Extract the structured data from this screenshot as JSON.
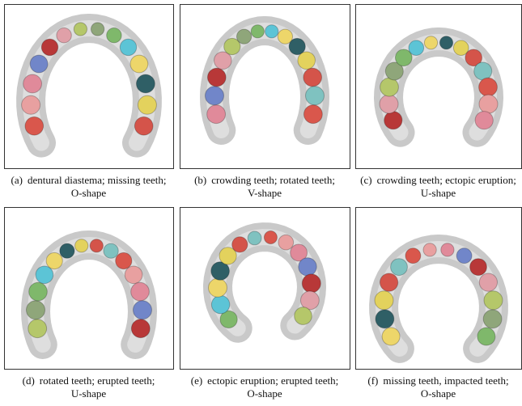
{
  "panels": [
    {
      "label": "(a)",
      "lines": [
        "dentural diastema; missing teeth;",
        "O-shape"
      ]
    },
    {
      "label": "(b)",
      "lines": [
        "crowding teeth; rotated teeth;",
        "V-shape"
      ]
    },
    {
      "label": "(c)",
      "lines": [
        "crowding teeth; ectopic eruption;",
        "U-shape"
      ]
    },
    {
      "label": "(d)",
      "lines": [
        "rotated teeth; erupted teeth;",
        "U-shape"
      ]
    },
    {
      "label": "(e)",
      "lines": [
        "ectopic eruption; erupted teeth;",
        "O-shape"
      ]
    },
    {
      "label": "(f)",
      "lines": [
        "missing teeth, impacted teeth;",
        "O-shape"
      ]
    }
  ]
}
